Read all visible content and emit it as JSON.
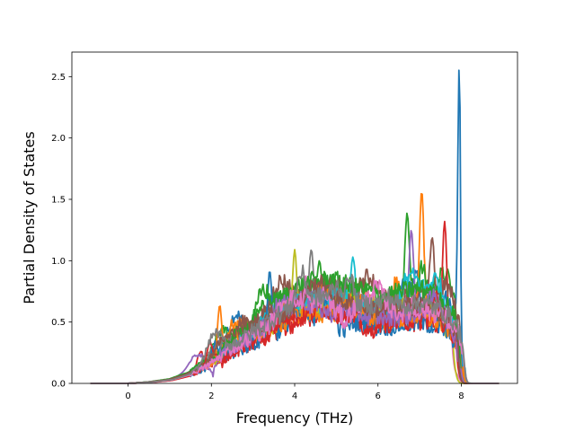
{
  "chart_data": {
    "type": "line",
    "title": "",
    "xlabel": "Frequency (THz)",
    "ylabel": "Partial Density of States",
    "xlim": [
      -1.35,
      9.35
    ],
    "ylim": [
      0.0,
      2.7
    ],
    "xticks": [
      0,
      2,
      4,
      6,
      8
    ],
    "xtick_labels": [
      "0",
      "2",
      "4",
      "6",
      "8"
    ],
    "yticks": [
      0.0,
      0.5,
      1.0,
      1.5,
      2.0,
      2.5
    ],
    "ytick_labels": [
      "0.0",
      "0.5",
      "1.0",
      "1.5",
      "2.0",
      "2.5"
    ],
    "grid": false,
    "legend": "none",
    "colors": [
      "#1f77b4",
      "#ff7f0e",
      "#2ca02c",
      "#d62728",
      "#9467bd",
      "#8c564b",
      "#e377c2",
      "#7f7f7f",
      "#bcbd22",
      "#17becf"
    ],
    "series_count": 18,
    "x_domain": [
      -0.9,
      8.9
    ],
    "profile_x": [
      -0.9,
      0.0,
      0.5,
      1.0,
      1.4,
      1.8,
      2.2,
      2.6,
      3.0,
      3.4,
      3.8,
      4.2,
      4.6,
      5.0,
      5.4,
      5.8,
      6.2,
      6.6,
      7.0,
      7.4,
      7.7,
      7.9,
      8.0,
      8.1,
      8.3,
      8.9
    ],
    "profile_y": [
      0.0,
      0.0,
      0.01,
      0.03,
      0.07,
      0.14,
      0.24,
      0.33,
      0.42,
      0.5,
      0.58,
      0.65,
      0.68,
      0.67,
      0.63,
      0.6,
      0.58,
      0.6,
      0.62,
      0.58,
      0.5,
      0.4,
      0.15,
      0.02,
      0.0,
      0.0
    ],
    "peaks": [
      {
        "x": 7.95,
        "y": 2.58
      },
      {
        "x": 7.05,
        "y": 1.57
      },
      {
        "x": 6.7,
        "y": 1.39
      },
      {
        "x": 7.6,
        "y": 1.32
      },
      {
        "x": 6.8,
        "y": 1.25
      },
      {
        "x": 7.3,
        "y": 1.19
      },
      {
        "x": 7.95,
        "y": 1.17
      },
      {
        "x": 4.4,
        "y": 1.09
      },
      {
        "x": 4.0,
        "y": 1.09
      },
      {
        "x": 5.4,
        "y": 1.03
      },
      {
        "x": 3.4,
        "y": 0.92
      },
      {
        "x": 2.2,
        "y": 0.64
      }
    ]
  }
}
